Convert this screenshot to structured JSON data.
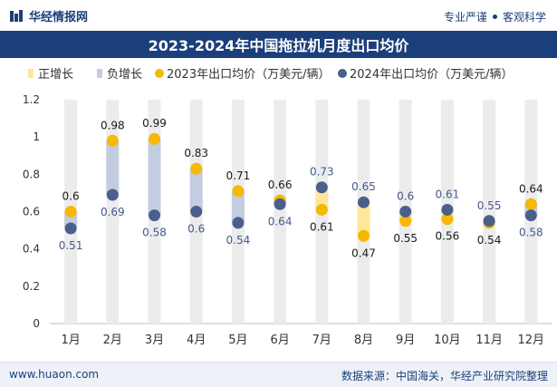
{
  "header": {
    "brand": "华经情报网",
    "slogan_left": "专业严谨",
    "slogan_right": "客观科学"
  },
  "footer": {
    "website": "www.huaon.com",
    "source": "数据来源：中国海关，华经产业研究院整理"
  },
  "colors": {
    "navy": "#1b3f7a",
    "positive": "#ffe79a",
    "negative": "#c3cde0",
    "series2023": "#f6b800",
    "series2024": "#4a5f8c",
    "column": "#ececec"
  },
  "chart_data": {
    "type": "line",
    "title": "2023-2024年中国拖拉机月度出口均价",
    "categories": [
      "1月",
      "2月",
      "3月",
      "4月",
      "5月",
      "6月",
      "7月",
      "8月",
      "9月",
      "10月",
      "11月",
      "12月"
    ],
    "series": [
      {
        "name": "2023年出口均价（万美元/辆）",
        "values": [
          0.6,
          0.98,
          0.99,
          0.83,
          0.71,
          0.66,
          0.61,
          0.47,
          0.55,
          0.56,
          0.54,
          0.64
        ]
      },
      {
        "name": "2024年出口均价（万美元/辆）",
        "values": [
          0.51,
          0.69,
          0.58,
          0.6,
          0.54,
          0.64,
          0.73,
          0.65,
          0.6,
          0.61,
          0.55,
          0.58
        ]
      }
    ],
    "legend": [
      "正增长",
      "负增长",
      "2023年出口均价（万美元/辆）",
      "2024年出口均价（万美元/辆）"
    ],
    "legend_position": "top-left",
    "ylim": [
      0,
      1.2
    ],
    "yticks": [
      0,
      0.2,
      0.4,
      0.6,
      0.8,
      1,
      1.2
    ],
    "grid": false
  }
}
